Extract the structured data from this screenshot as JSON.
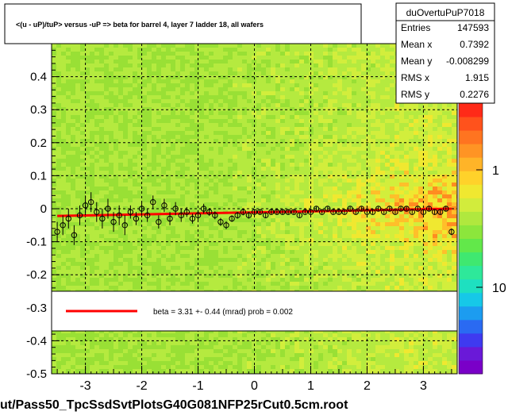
{
  "title": "<(u - uP)/tuP> versus  -uP => beta for barrel 4, layer 7 ladder 18, all wafers",
  "footer": "ut/Pass50_TpcSsdSvtPlotsG40G081NFP25rCut0.5cm.root",
  "stats": {
    "name": "duOvertuPuP7018",
    "rows": [
      {
        "label": "Entries",
        "value": "147593"
      },
      {
        "label": "Mean x",
        "value": "0.7392"
      },
      {
        "label": "Mean y",
        "value": "-0.008299"
      },
      {
        "label": "RMS x",
        "value": "1.915"
      },
      {
        "label": "RMS y",
        "value": "0.2276"
      }
    ]
  },
  "fit_legend": "beta =    3.31 +-  0.44 (mrad) prob = 0.002",
  "colors": {
    "fit_line": "#ff0000",
    "background": "#a8e63c",
    "grid": "#000000",
    "profile_marker": "#000000"
  },
  "chart_data": {
    "type": "heatmap",
    "title": "<(u - uP)/tuP> versus  -uP => beta for barrel 4, layer 7 ladder 18, all wafers",
    "xlim": [
      -3.6,
      3.6
    ],
    "ylim": [
      -0.5,
      0.5
    ],
    "x_ticks": [
      "-3",
      "-2",
      "-1",
      "0",
      "1",
      "2",
      "3"
    ],
    "x_tick_values": [
      -3,
      -2,
      -1,
      0,
      1,
      2,
      3
    ],
    "y_ticks": [
      "-0.5",
      "-0.4",
      "-0.3",
      "-0.2",
      "-0.1",
      "0",
      "0.1",
      "0.2",
      "0.3",
      "0.4"
    ],
    "y_tick_values": [
      -0.5,
      -0.4,
      -0.3,
      -0.2,
      -0.1,
      0,
      0.1,
      0.2,
      0.3,
      0.4
    ],
    "colorbar": {
      "scale": "log",
      "labels": [
        "10",
        "1"
      ],
      "label_values": [
        10,
        1
      ]
    },
    "grid": true,
    "fit": {
      "x": [
        -3.5,
        3.5
      ],
      "y": [
        -0.022,
        0.0
      ]
    },
    "profile": {
      "x": [
        -3.5,
        -3.4,
        -3.3,
        -3.2,
        -3.1,
        -3.0,
        -2.9,
        -2.8,
        -2.7,
        -2.6,
        -2.5,
        -2.4,
        -2.3,
        -2.2,
        -2.1,
        -2.0,
        -1.9,
        -1.8,
        -1.7,
        -1.6,
        -1.5,
        -1.4,
        -1.3,
        -1.2,
        -1.1,
        -1.0,
        -0.9,
        -0.8,
        -0.7,
        -0.6,
        -0.5,
        -0.4,
        -0.3,
        -0.2,
        -0.1,
        0.0,
        0.1,
        0.2,
        0.3,
        0.4,
        0.5,
        0.6,
        0.7,
        0.8,
        0.9,
        1.0,
        1.1,
        1.2,
        1.3,
        1.4,
        1.5,
        1.6,
        1.7,
        1.8,
        1.9,
        2.0,
        2.1,
        2.2,
        2.3,
        2.4,
        2.5,
        2.6,
        2.7,
        2.8,
        2.9,
        3.0,
        3.1,
        3.2,
        3.3,
        3.4,
        3.5
      ],
      "y": [
        -0.07,
        -0.05,
        -0.03,
        -0.08,
        -0.02,
        0.01,
        0.02,
        -0.01,
        -0.03,
        0.0,
        -0.04,
        -0.02,
        -0.05,
        -0.01,
        -0.03,
        0.0,
        -0.02,
        0.02,
        -0.04,
        0.01,
        -0.03,
        0.0,
        -0.02,
        -0.01,
        -0.03,
        -0.02,
        0.0,
        -0.01,
        -0.02,
        -0.04,
        -0.05,
        -0.03,
        -0.02,
        -0.01,
        -0.02,
        -0.01,
        -0.01,
        -0.02,
        -0.01,
        -0.01,
        -0.01,
        -0.01,
        -0.01,
        -0.02,
        -0.01,
        -0.01,
        0.0,
        -0.01,
        0.0,
        -0.01,
        -0.01,
        -0.01,
        0.0,
        -0.01,
        0.0,
        -0.01,
        -0.01,
        0.0,
        -0.01,
        0.0,
        -0.01,
        0.0,
        0.0,
        -0.01,
        0.0,
        -0.01,
        0.0,
        -0.01,
        -0.01,
        0.0,
        -0.07
      ],
      "err": [
        0.03,
        0.03,
        0.03,
        0.03,
        0.03,
        0.03,
        0.03,
        0.03,
        0.03,
        0.03,
        0.03,
        0.03,
        0.03,
        0.02,
        0.02,
        0.02,
        0.02,
        0.02,
        0.02,
        0.02,
        0.02,
        0.02,
        0.02,
        0.015,
        0.015,
        0.015,
        0.015,
        0.012,
        0.012,
        0.012,
        0.012,
        0.01,
        0.01,
        0.01,
        0.01,
        0.008,
        0.008,
        0.008,
        0.008,
        0.007,
        0.007,
        0.007,
        0.007,
        0.006,
        0.006,
        0.006,
        0.006,
        0.006,
        0.006,
        0.006,
        0.006,
        0.006,
        0.006,
        0.006,
        0.006,
        0.006,
        0.006,
        0.006,
        0.006,
        0.006,
        0.006,
        0.006,
        0.006,
        0.006,
        0.006,
        0.007,
        0.007,
        0.007,
        0.008,
        0.008,
        0.01
      ]
    }
  }
}
